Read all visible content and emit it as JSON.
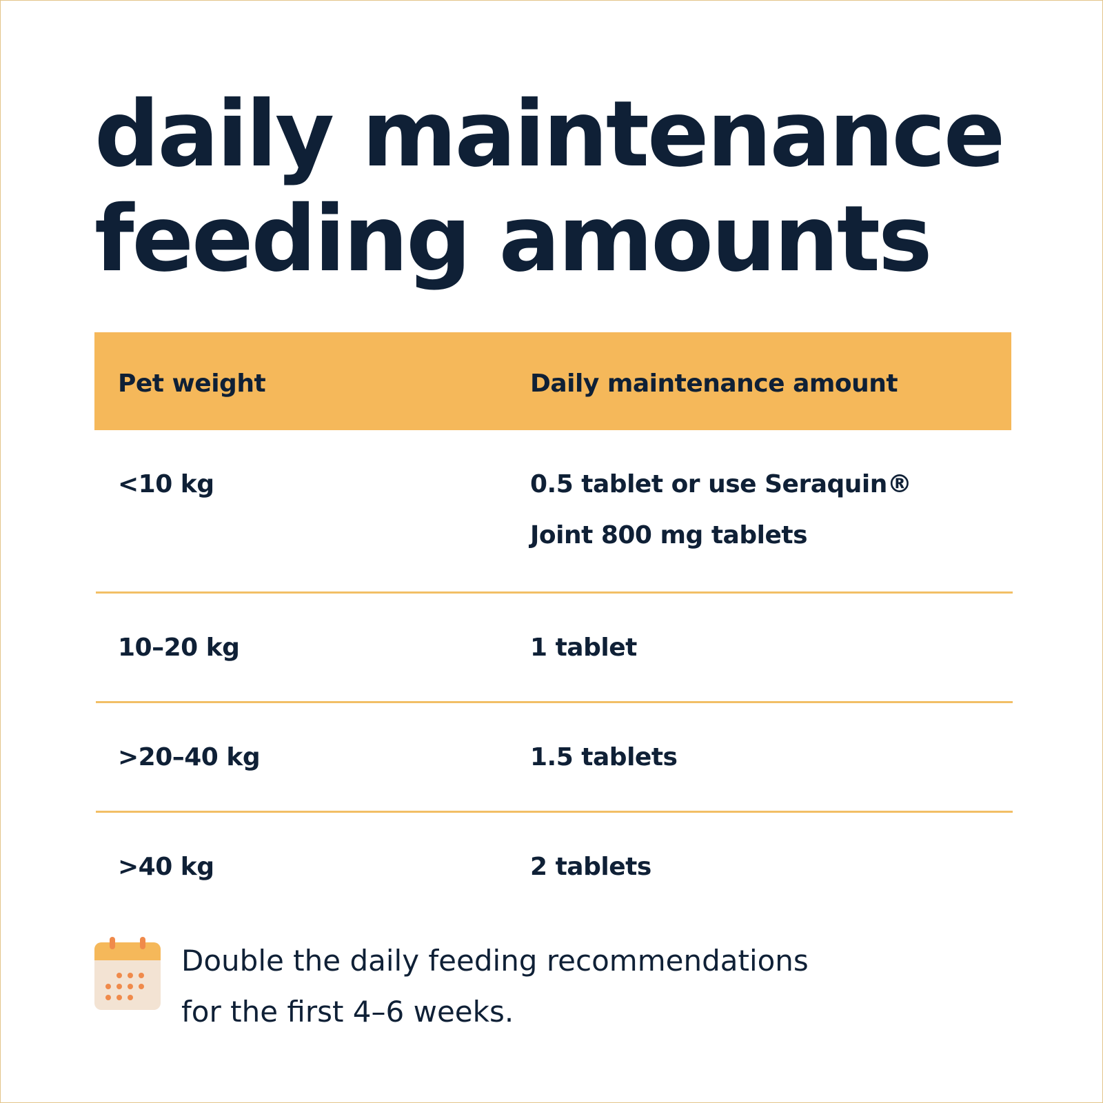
{
  "header": {
    "title_lines": [
      "daily maintenance",
      "feeding amounts"
    ]
  },
  "table": {
    "columns": [
      "Pet weight",
      "Daily maintenance amount"
    ],
    "rows": [
      {
        "weight": "<10 kg",
        "amount_lines": [
          "0.5 tablet or use Seraquin®",
          "Joint 800 mg tablets"
        ]
      },
      {
        "weight": "10–20 kg",
        "amount_lines": [
          "1 tablet"
        ]
      },
      {
        "weight": ">20–40 kg",
        "amount_lines": [
          "1.5 tablets"
        ]
      },
      {
        "weight": ">40 kg",
        "amount_lines": [
          "2 tablets"
        ]
      }
    ]
  },
  "note": {
    "lines": [
      "Double the daily feeding recommendations",
      "for the first 4–6 weeks."
    ]
  }
}
